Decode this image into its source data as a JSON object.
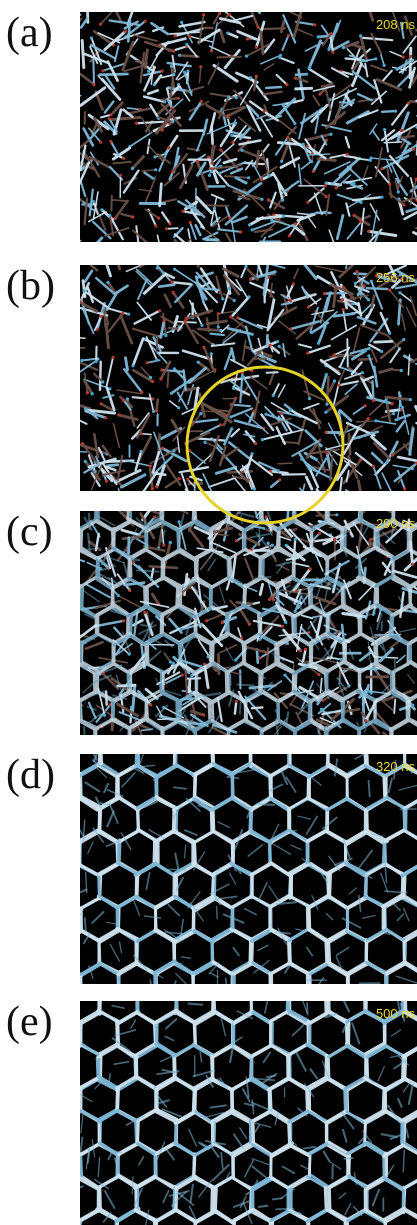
{
  "panels": [
    {
      "label": "(a)",
      "time": "208 ns",
      "order": "disordered"
    },
    {
      "label": "(b)",
      "time": "256 ns",
      "order": "disordered"
    },
    {
      "label": "(c)",
      "time": "290 ns",
      "order": "partial"
    },
    {
      "label": "(d)",
      "time": "320 ns",
      "order": "ordered"
    },
    {
      "label": "(e)",
      "time": "500 ns",
      "order": "ordered"
    }
  ],
  "colors": {
    "background": "#000000",
    "bond_light": "#cfe3ef",
    "bond_blue": "#7fb8d6",
    "bond_dark": "#6a5148",
    "oxygen": "#b23a2e",
    "hydrogen": "#4aa8d0",
    "time_label": "#e9d737",
    "highlight_circle": "#e6d32a"
  }
}
